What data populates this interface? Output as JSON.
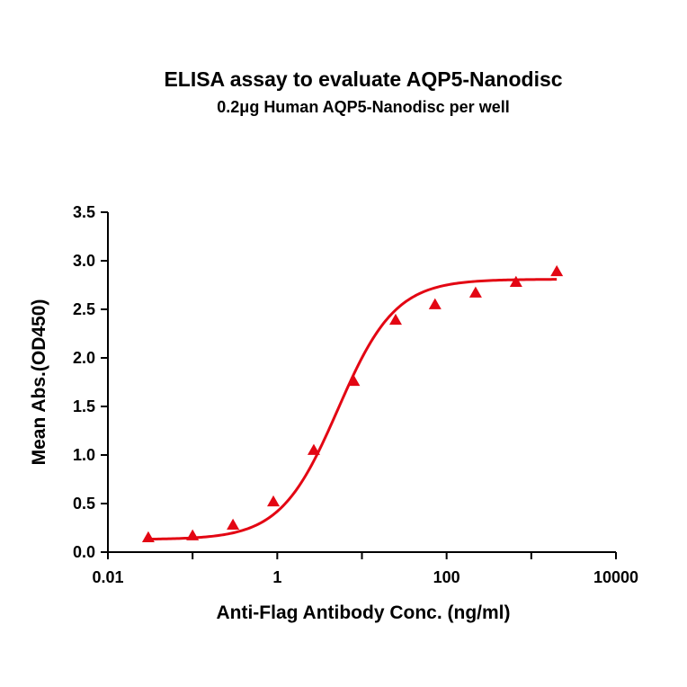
{
  "chart_data": {
    "type": "scatter",
    "title": "ELISA assay to evaluate AQP5-Nanodisc",
    "subtitle": "0.2μg Human AQP5-Nanodisc per well",
    "xlabel": "Anti-Flag Antibody Conc. (ng/ml)",
    "ylabel": "Mean Abs.(OD450)",
    "x_scale": "log",
    "xlim": [
      0.01,
      10000
    ],
    "ylim": [
      0,
      3.5
    ],
    "x_ticks": [
      0.01,
      1,
      100,
      10000
    ],
    "x_tick_labels": [
      "0.01",
      "1",
      "100",
      "10000"
    ],
    "y_ticks": [
      0,
      0.5,
      1,
      1.5,
      2,
      2.5,
      3,
      3.5
    ],
    "y_tick_labels": [
      "0.0",
      "0.5",
      "1.0",
      "1.5",
      "2.0",
      "2.5",
      "3.0",
      "3.5"
    ],
    "grid": false,
    "legend": "none",
    "color": "#e30613",
    "marker": "triangle",
    "series": [
      {
        "x": [
          0.03,
          0.1,
          0.3,
          0.9,
          2.7,
          8,
          25,
          73,
          220,
          660,
          2000
        ],
        "y": [
          0.15,
          0.17,
          0.28,
          0.52,
          1.05,
          1.76,
          2.39,
          2.55,
          2.67,
          2.78,
          2.89
        ]
      }
    ],
    "fit": {
      "type": "4PL",
      "bottom": 0.13,
      "top": 2.81,
      "ec50": 5.2,
      "hill": 1.28
    }
  }
}
